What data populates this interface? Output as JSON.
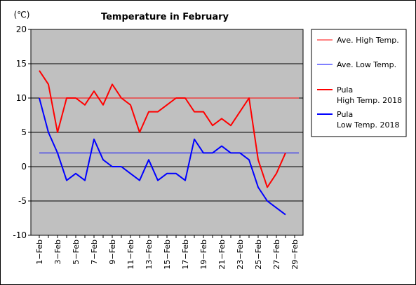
{
  "chart_data": {
    "type": "line",
    "title": "Temperature in February",
    "unit_label": "(℃)",
    "x_tick_labels": [
      "1−Feb",
      "3−Feb",
      "5−Feb",
      "7−Feb",
      "9−Feb",
      "11−Feb",
      "13−Feb",
      "15−Feb",
      "17−Feb",
      "19−Feb",
      "21−Feb",
      "23−Feb",
      "25−Feb",
      "27−Feb",
      "29−Feb"
    ],
    "x_days": [
      1,
      2,
      3,
      4,
      5,
      6,
      7,
      8,
      9,
      10,
      11,
      12,
      13,
      14,
      15,
      16,
      17,
      18,
      19,
      20,
      21,
      22,
      23,
      24,
      25,
      26,
      27,
      28
    ],
    "x_range": [
      1,
      29
    ],
    "ylim": [
      -10,
      20
    ],
    "y_ticks": [
      -10,
      -5,
      0,
      5,
      10,
      15,
      20
    ],
    "plot_background": "#c0c0c0",
    "grid": true,
    "legend_position": "right",
    "series": [
      {
        "name": "Ave. High Temp.",
        "color": "#ff0000",
        "width": 1,
        "constant": 10
      },
      {
        "name": "Ave. Low Temp.",
        "color": "#0000ff",
        "width": 1,
        "constant": 2
      },
      {
        "name": "Pula\nHigh Temp. 2018",
        "color": "#ff0000",
        "width": 2,
        "values": [
          14,
          12,
          5,
          10,
          10,
          9,
          11,
          9,
          12,
          10,
          9,
          5,
          8,
          8,
          9,
          10,
          10,
          8,
          8,
          6,
          7,
          6,
          8,
          10,
          1,
          -3,
          -1,
          2
        ]
      },
      {
        "name": "Pula\nLow Temp. 2018",
        "color": "#0000ff",
        "width": 2,
        "values": [
          10,
          5,
          2,
          -2,
          -1,
          -2,
          4,
          1,
          0,
          0,
          -1,
          -2,
          1,
          -2,
          -1,
          -1,
          -2,
          4,
          2,
          2,
          3,
          2,
          2,
          1,
          -3,
          -5,
          -6,
          -7
        ]
      }
    ]
  }
}
